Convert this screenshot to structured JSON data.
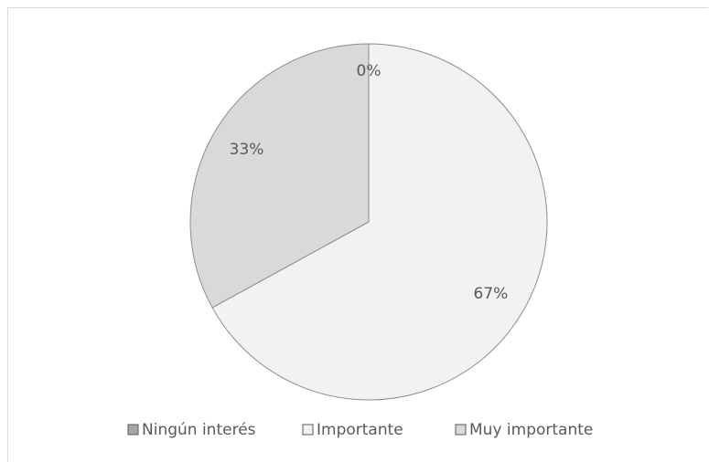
{
  "chart_data": {
    "type": "pie",
    "categories": [
      "Ningún interés",
      "Importante",
      "Muy importante"
    ],
    "values": [
      0,
      67,
      33
    ],
    "value_labels": [
      "0%",
      "67%",
      "33%"
    ],
    "colors": [
      "#a6a6a6",
      "#f2f2f2",
      "#d9d9d9"
    ],
    "legend": "bottom"
  }
}
